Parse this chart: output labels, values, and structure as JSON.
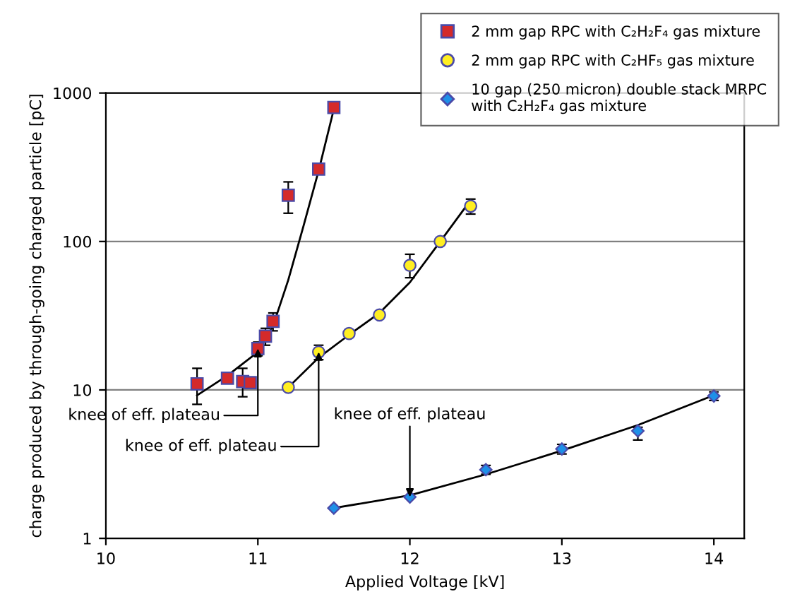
{
  "chart_data": {
    "type": "scatter",
    "xlabel": "Applied Voltage [kV]",
    "ylabel": "charge produced by through-going charged particle [pC]",
    "log": "y",
    "xlim": [
      10,
      14.2
    ],
    "xticks": [
      10,
      11,
      12,
      13,
      14
    ],
    "ylim": [
      1,
      1000
    ],
    "yticks": [
      1,
      10,
      100,
      1000
    ],
    "grid": "y",
    "legend": "top right",
    "series": [
      {
        "name": "2 mm gap RPC with C₂H₂F₄ gas mixture",
        "color": "#d42a2a",
        "marker": "square",
        "x": [
          10.6,
          10.8,
          10.9,
          10.95,
          11.0,
          11.05,
          11.1,
          11.2,
          11.4,
          11.5
        ],
        "values": [
          11,
          12,
          11.4,
          11.2,
          19,
          23,
          29,
          205,
          307,
          800
        ],
        "errors": [
          3,
          null,
          [
            9,
            14
          ],
          null,
          2,
          3,
          [
            25,
            33
          ],
          [
            155,
            252
          ],
          null,
          null
        ]
      },
      {
        "name": "2 mm gap RPC with C₂HF₅ gas mixture",
        "color": "#ffee22",
        "marker": "circle",
        "x": [
          11.2,
          11.4,
          11.6,
          11.8,
          12.0,
          12.2,
          12.4
        ],
        "values": [
          10.4,
          18,
          24,
          32,
          69,
          100,
          173
        ],
        "errors": [
          null,
          [
            16,
            20
          ],
          null,
          null,
          [
            57,
            82
          ],
          null,
          20
        ]
      },
      {
        "name": "10 gap (250 micron) double stack MRPC\nwith C₂H₂F₄ gas mixture",
        "color": "#1e90e8",
        "marker": "diamond",
        "x": [
          11.5,
          12,
          12.5,
          13,
          13.5,
          14
        ],
        "values": [
          1.6,
          1.9,
          2.9,
          4.0,
          5.3,
          9.1
        ],
        "errors": [
          null,
          null,
          0.2,
          [
            3.7,
            4.3
          ],
          [
            4.6,
            5.6
          ],
          0.6
        ]
      },
      {
        "type": "line",
        "color": "#000000",
        "marker": "none",
        "x": [
          10.6,
          10.8,
          11.0,
          11.1,
          11.2,
          11.3,
          11.4,
          11.5
        ],
        "values": [
          9.2,
          12.5,
          18,
          27,
          55,
          127,
          300,
          780
        ]
      },
      {
        "type": "line",
        "color": "#000000",
        "marker": "none",
        "x": [
          11.2,
          11.4,
          11.6,
          11.8,
          12.0,
          12.2,
          12.4
        ],
        "values": [
          10.4,
          16.5,
          23.5,
          33,
          53,
          100,
          190
        ]
      },
      {
        "type": "line",
        "color": "#000000",
        "marker": "none",
        "x": [
          11.5,
          12,
          12.5,
          13,
          13.5,
          14
        ],
        "values": [
          1.6,
          1.95,
          2.7,
          3.9,
          5.8,
          9.2
        ]
      }
    ],
    "annotations": [
      {
        "text": "knee of eff. plateau",
        "x": 11.0,
        "y": 19
      },
      {
        "text": "knee of eff. plateau",
        "x": 11.4,
        "y": 18
      },
      {
        "text": "knee of eff. plateau",
        "x": 12.0,
        "y": 1.9
      }
    ]
  }
}
